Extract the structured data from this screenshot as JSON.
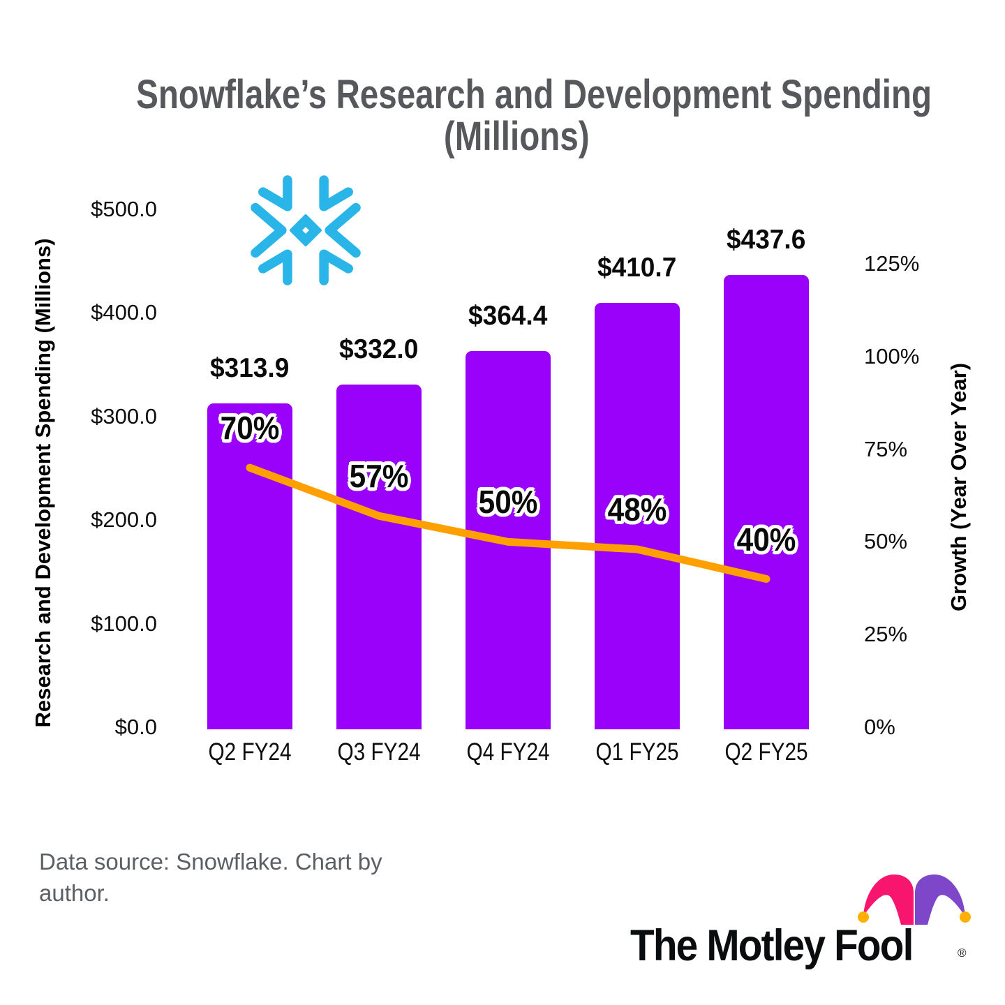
{
  "header": {
    "title_line1": "Snowflake’s Research and Development Spending",
    "title_line2": "(Millions)"
  },
  "chart_data": {
    "type": "bar",
    "title": "Snowflake’s Research and Development Spending (Millions)",
    "categories": [
      "Q2 FY24",
      "Q3 FY24",
      "Q4 FY24",
      "Q1 FY25",
      "Q2 FY25"
    ],
    "series": [
      {
        "name": "Research and Development Spending (Millions)",
        "type": "bar",
        "axis": "left",
        "color": "#9901FB",
        "values": [
          313.9,
          332.0,
          364.4,
          410.7,
          437.6
        ],
        "data_labels": [
          "$313.9",
          "$332.0",
          "$364.4",
          "$410.7",
          "$437.6"
        ]
      },
      {
        "name": "Growth (Year Over Year)",
        "type": "line",
        "axis": "right",
        "color": "#FFA000",
        "values": [
          70,
          57,
          50,
          48,
          40
        ],
        "data_labels": [
          "70%",
          "57%",
          "50%",
          "48%",
          "40%"
        ]
      }
    ],
    "left_axis": {
      "label": "Research and Development Spending (Millions)",
      "ticks": [
        "$0.0",
        "$100.0",
        "$200.0",
        "$300.0",
        "$400.0",
        "$500.0"
      ],
      "range": [
        0,
        500
      ]
    },
    "right_axis": {
      "label": "Growth (Year Over Year)",
      "ticks": [
        "0%",
        "25%",
        "50%",
        "75%",
        "100%",
        "125%"
      ],
      "range": [
        0,
        125
      ]
    },
    "grid": false,
    "legend": "none"
  },
  "footer": {
    "source_line1": "Data source: Snowflake. Chart by",
    "source_line2": "author.",
    "brand_name": "The Motley Fool",
    "registered_mark": "®"
  },
  "icons": {
    "snowflake_logo": "snowflake-logo",
    "jester_hat": "jester-hat-logo"
  },
  "colors": {
    "bar_purple": "#9901FB",
    "line_orange": "#FFA000",
    "title_gray": "#56585C",
    "source_gray": "#5B5F63",
    "snowflake_blue": "#29B5E8",
    "hat_pink": "#F7156E",
    "hat_purple": "#7E46C9",
    "hat_gold": "#FFB000",
    "text_black": "#0A0A0A"
  }
}
